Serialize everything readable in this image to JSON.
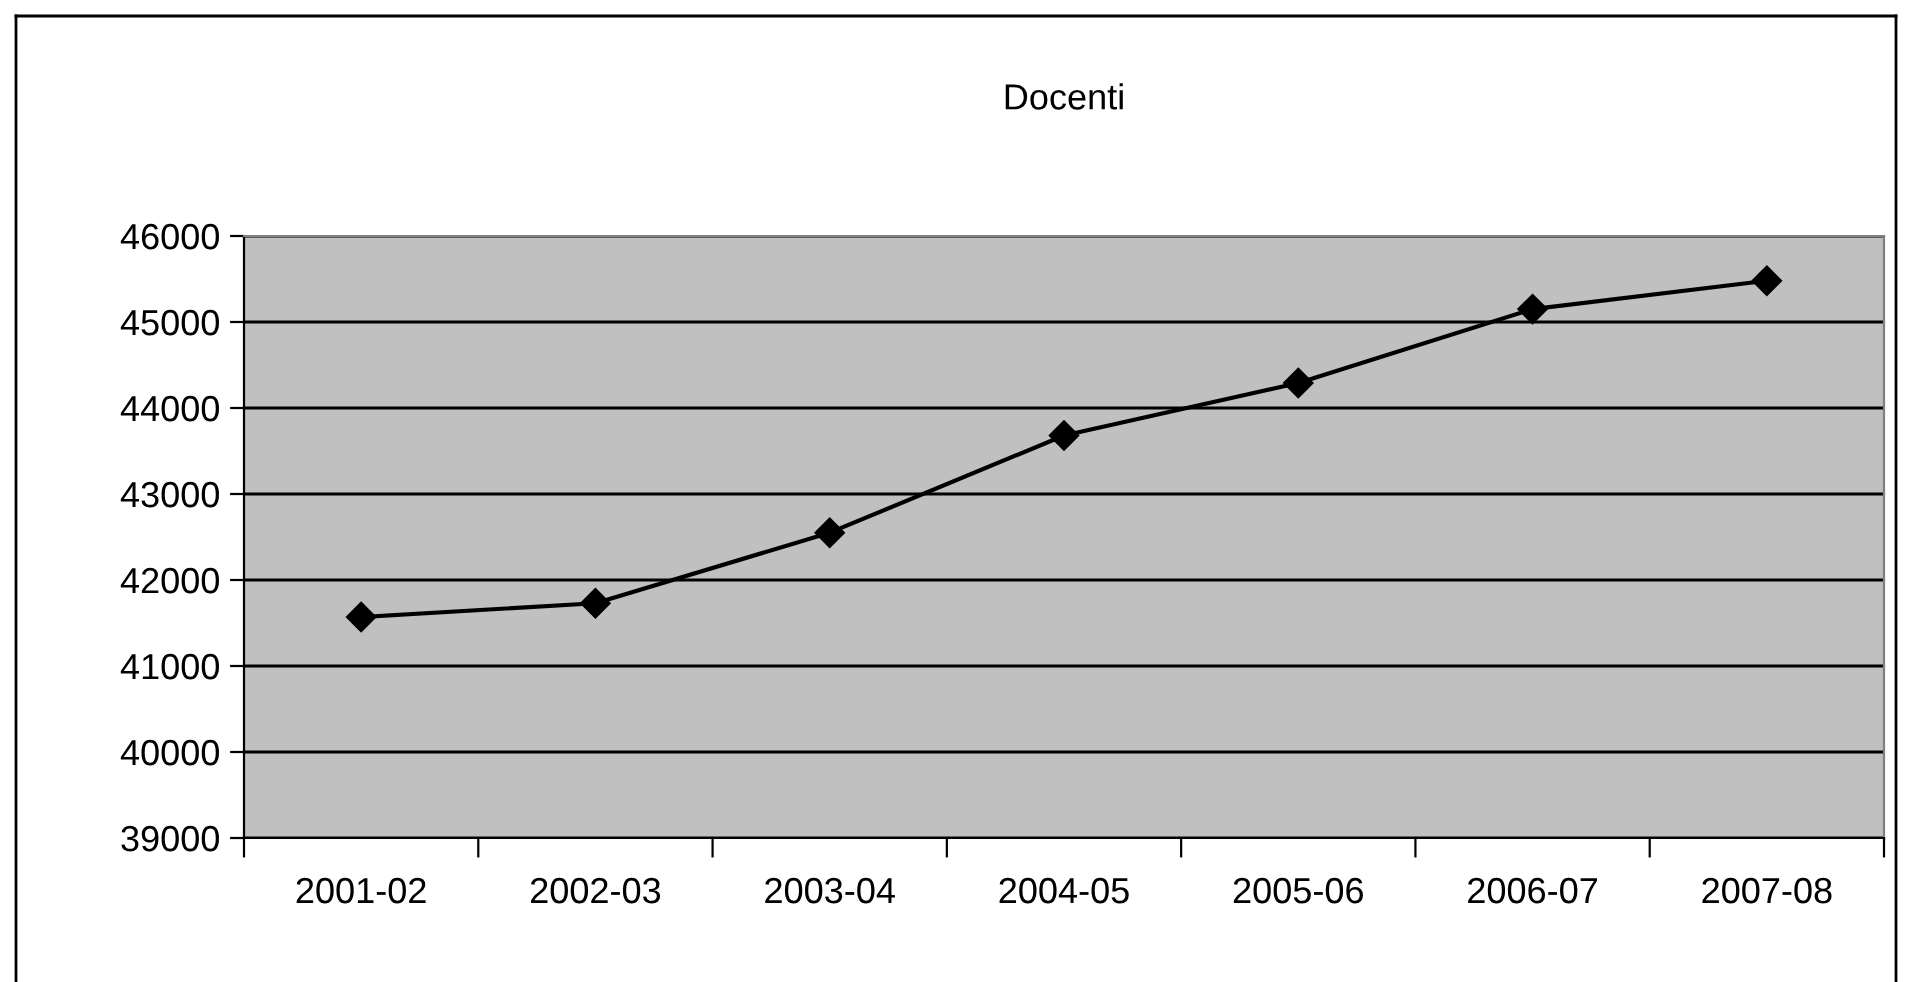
{
  "chart_data": {
    "type": "line",
    "title": "Docenti",
    "categories": [
      "2001-02",
      "2002-03",
      "2003-04",
      "2004-05",
      "2005-06",
      "2006-07",
      "2007-08"
    ],
    "series": [
      {
        "color": "#000000",
        "values": [
          41570,
          41730,
          42550,
          43680,
          44290,
          45150,
          45480
        ]
      }
    ],
    "ylim": [
      39000,
      46000
    ],
    "yticks": [
      39000,
      40000,
      41000,
      42000,
      43000,
      44000,
      45000,
      46000
    ],
    "grid": "y",
    "marker": "diamond",
    "line_style": "solid"
  }
}
